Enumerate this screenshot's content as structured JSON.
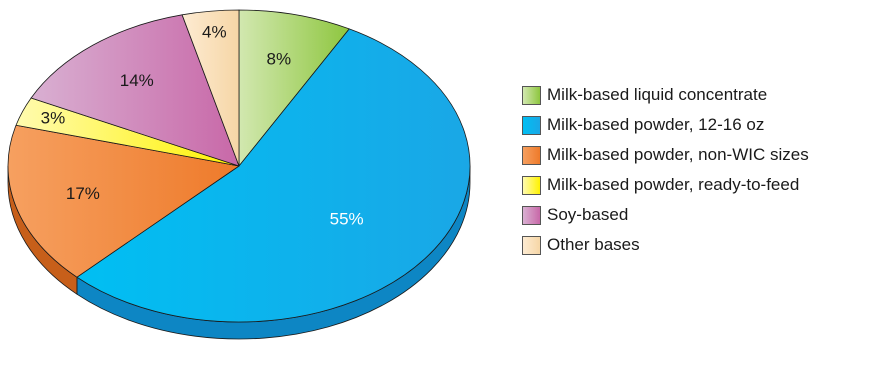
{
  "chart_data": {
    "type": "pie",
    "title": "",
    "slices": [
      {
        "label": "Milk-based liquid concentrate",
        "value": 8,
        "display": "8%",
        "color": "#8ec63f",
        "light": "#d2e8b0",
        "dark": "#5f9a2a",
        "label_color": "#1a1a1a"
      },
      {
        "label": "Milk-based powder, 12-16 oz",
        "value": 55,
        "display": "55%",
        "color": "#1aa7e6",
        "light": "#00bff3",
        "dark": "#0d86c4",
        "label_color": "#ffffff"
      },
      {
        "label": "Milk-based powder, non-WIC sizes",
        "value": 17,
        "display": "17%",
        "color": "#ee7a2a",
        "light": "#f6a060",
        "dark": "#c75f1a",
        "label_color": "#1a1a1a"
      },
      {
        "label": "Milk-based powder, ready-to-feed",
        "value": 3,
        "display": "3%",
        "color": "#fff200",
        "light": "#fffbb0",
        "dark": "#e2cf00",
        "label_color": "#1a1a1a"
      },
      {
        "label": "Soy-based",
        "value": 14,
        "display": "14%",
        "color": "#c868a8",
        "light": "#d9b0d2",
        "dark": "#b0447f",
        "label_color": "#1a1a1a"
      },
      {
        "label": "Other bases",
        "value": 4,
        "display": "4%",
        "color": "#f6d6a6",
        "light": "#fdebd2",
        "dark": "#d9b381",
        "label_color": "#1a1a1a"
      }
    ],
    "legend_position": "right"
  }
}
